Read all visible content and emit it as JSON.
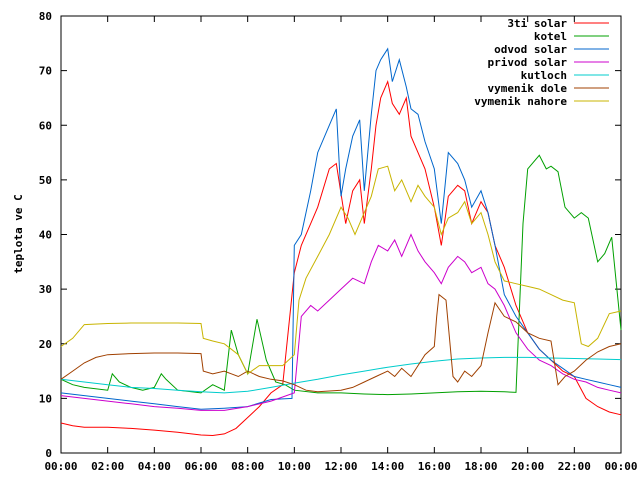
{
  "chart_data": {
    "type": "line",
    "ylabel": "teplota ve C",
    "xlabel": "",
    "title": "",
    "ylim": [
      0,
      80
    ],
    "yticks": [
      0,
      10,
      20,
      30,
      40,
      50,
      60,
      70,
      80
    ],
    "xlim": [
      0,
      24
    ],
    "xticks": [
      "00:00",
      "02:00",
      "04:00",
      "06:00",
      "08:00",
      "10:00",
      "12:00",
      "14:00",
      "16:00",
      "18:00",
      "20:00",
      "22:00",
      "00:00"
    ],
    "legend_position": "top-right",
    "grid": false,
    "series": [
      {
        "name": "3ti solar",
        "color": "#ff0000",
        "x": [
          0,
          0.5,
          1,
          2,
          3,
          4,
          5,
          6,
          6.5,
          7,
          7.5,
          8,
          8.5,
          9,
          9.5,
          10,
          10.3,
          10.7,
          11,
          11.5,
          11.8,
          12.2,
          12.5,
          12.8,
          13,
          13.3,
          13.5,
          13.7,
          14,
          14.2,
          14.5,
          14.8,
          15,
          15.3,
          15.6,
          16,
          16.3,
          16.6,
          17,
          17.3,
          17.6,
          18,
          18.3,
          18.6,
          19,
          19.5,
          20,
          20.5,
          21,
          21.5,
          22,
          22.5,
          23,
          23.5,
          24
        ],
        "y": [
          5.5,
          5,
          4.7,
          4.7,
          4.5,
          4.2,
          3.8,
          3.3,
          3.2,
          3.5,
          4.5,
          6.5,
          8.5,
          11,
          12.5,
          33,
          38,
          42,
          45,
          52,
          53,
          42,
          48,
          50,
          42,
          52,
          60,
          65,
          68,
          64,
          62,
          65,
          58,
          55,
          52,
          45,
          38,
          47,
          49,
          48,
          42,
          46,
          44,
          38,
          34,
          27,
          22,
          19,
          17,
          15,
          14,
          10,
          8.5,
          7.5,
          7
        ]
      },
      {
        "name": "kotel",
        "color": "#00a000",
        "x": [
          0,
          0.5,
          1,
          2,
          2.2,
          2.5,
          3,
          3.5,
          4,
          4.3,
          4.5,
          5,
          6,
          6.5,
          7,
          7.3,
          7.6,
          8,
          8.4,
          8.8,
          9.2,
          9.6,
          10,
          11,
          12,
          13,
          14,
          15,
          16,
          17,
          18,
          19,
          19.5,
          19.8,
          20,
          20.5,
          20.8,
          21,
          21.3,
          21.6,
          22,
          22.3,
          22.6,
          23,
          23.3,
          23.6,
          24
        ],
        "y": [
          13.5,
          12.5,
          12,
          11.5,
          14.5,
          13,
          12,
          11.5,
          12,
          14.5,
          13.5,
          11.5,
          11,
          12.5,
          11.5,
          22.5,
          18,
          14.5,
          24.5,
          17,
          13,
          12.5,
          11.5,
          11,
          11,
          10.8,
          10.7,
          10.8,
          11,
          11.2,
          11.3,
          11.2,
          11.1,
          42,
          52,
          54.5,
          52,
          52.5,
          51.5,
          45,
          43,
          44,
          43,
          35,
          36.5,
          39.5,
          22.5
        ]
      },
      {
        "name": "odvod solar",
        "color": "#0066cc",
        "x": [
          0,
          1,
          2,
          3,
          4,
          5,
          6,
          7,
          8,
          9,
          9.9,
          10,
          10.3,
          10.7,
          11,
          11.5,
          11.8,
          12,
          12.2,
          12.5,
          12.8,
          13,
          13.3,
          13.5,
          13.7,
          14,
          14.2,
          14.5,
          14.8,
          15,
          15.3,
          15.6,
          16,
          16.3,
          16.6,
          17,
          17.3,
          17.6,
          18,
          18.3,
          18.6,
          19,
          19.5,
          20,
          20.5,
          21,
          21.5,
          22,
          22.5,
          23,
          23.5,
          24
        ],
        "y": [
          11,
          10.5,
          10,
          9.5,
          9,
          8.5,
          8,
          8.2,
          8.5,
          9.8,
          10,
          38,
          40,
          48,
          55,
          60,
          63,
          47,
          52,
          58,
          61,
          48,
          62,
          70,
          72,
          74,
          68,
          72,
          67,
          63,
          62,
          57,
          52,
          42,
          55,
          53,
          50,
          45,
          48,
          44,
          38,
          29,
          25,
          22,
          19,
          17,
          15.5,
          14,
          13.5,
          13,
          12.5,
          12
        ]
      },
      {
        "name": "privod solar",
        "color": "#cc00cc",
        "x": [
          0,
          1,
          2,
          3,
          4,
          5,
          6,
          7,
          8,
          9,
          10,
          10.3,
          10.7,
          11,
          11.5,
          12,
          12.5,
          13,
          13.3,
          13.6,
          14,
          14.3,
          14.6,
          15,
          15.3,
          15.6,
          16,
          16.3,
          16.6,
          17,
          17.3,
          17.6,
          18,
          18.3,
          18.6,
          19,
          19.5,
          20,
          20.5,
          21,
          21.5,
          22,
          22.5,
          23,
          23.5,
          24
        ],
        "y": [
          10.5,
          10,
          9.5,
          9,
          8.5,
          8.2,
          7.8,
          7.8,
          8.5,
          9.5,
          11,
          25,
          27,
          26,
          28,
          30,
          32,
          31,
          35,
          38,
          37,
          39,
          36,
          40,
          37,
          35,
          33,
          31,
          34,
          36,
          35,
          33,
          34,
          31,
          30,
          27,
          22,
          19,
          17,
          16,
          14.5,
          13.5,
          13,
          12,
          11.5,
          11
        ]
      },
      {
        "name": "kutloch",
        "color": "#00cccc",
        "x": [
          0,
          1,
          2,
          3,
          4,
          5,
          6,
          7,
          8,
          9,
          10,
          11,
          12,
          13,
          14,
          15,
          16,
          17,
          18,
          19,
          20,
          21,
          22,
          23,
          24
        ],
        "y": [
          13.5,
          13,
          12.5,
          12,
          11.8,
          11.5,
          11.2,
          11,
          11.3,
          12,
          12.8,
          13.5,
          14.3,
          15,
          15.7,
          16.3,
          16.8,
          17.2,
          17.4,
          17.5,
          17.5,
          17.4,
          17.3,
          17.2,
          17.1
        ]
      },
      {
        "name": "vymenik dole",
        "color": "#a04000",
        "x": [
          0,
          0.5,
          1,
          1.5,
          2,
          3,
          4,
          5,
          6,
          6.1,
          6.5,
          7,
          7.3,
          7.6,
          8,
          8.5,
          9,
          9.5,
          10,
          10.5,
          11,
          12,
          12.5,
          13,
          13.5,
          14,
          14.3,
          14.6,
          15,
          15.3,
          15.6,
          16,
          16.1,
          16.2,
          16.5,
          16.8,
          17,
          17.3,
          17.6,
          18,
          18.3,
          18.6,
          19,
          19.5,
          20,
          20.5,
          21,
          21.3,
          21.6,
          22,
          22.5,
          23,
          23.5,
          24
        ],
        "y": [
          13.5,
          15,
          16.5,
          17.5,
          18,
          18.2,
          18.3,
          18.3,
          18.2,
          15,
          14.5,
          15,
          14.5,
          14,
          15,
          14,
          13.5,
          13.2,
          12.5,
          11.5,
          11.2,
          11.5,
          12,
          13,
          14,
          15,
          14,
          15.5,
          14,
          16,
          18,
          19.5,
          25,
          29,
          28,
          14,
          13,
          15,
          14,
          16,
          22,
          27.5,
          25,
          24,
          22,
          21,
          20.5,
          12.5,
          14,
          15,
          17,
          18.5,
          19.5,
          20
        ]
      },
      {
        "name": "vymenik nahore",
        "color": "#c8b400",
        "x": [
          0,
          0.5,
          1,
          2,
          3,
          4,
          5,
          6,
          6.1,
          6.5,
          7,
          7.3,
          7.6,
          8,
          8.5,
          9,
          9.5,
          10,
          10.2,
          10.5,
          11,
          11.5,
          12,
          12.3,
          12.6,
          13,
          13.3,
          13.6,
          14,
          14.3,
          14.6,
          15,
          15.3,
          15.6,
          16,
          16.3,
          16.6,
          17,
          17.3,
          17.6,
          18,
          18.3,
          18.6,
          19,
          19.5,
          20,
          20.5,
          21,
          21.5,
          22,
          22.3,
          22.6,
          23,
          23.5,
          24
        ],
        "y": [
          19.5,
          21,
          23.5,
          23.7,
          23.8,
          23.8,
          23.8,
          23.7,
          21,
          20.5,
          20,
          19,
          18,
          14.5,
          16,
          16,
          16,
          18,
          28,
          32,
          36,
          40,
          45,
          43,
          40,
          44,
          47,
          52,
          52.5,
          48,
          50,
          46,
          49,
          47,
          45,
          40,
          43,
          44,
          46,
          42,
          44,
          40,
          35,
          31.5,
          31,
          30.5,
          30,
          29,
          28,
          27.5,
          20,
          19.5,
          21,
          25.5,
          26
        ]
      }
    ]
  }
}
